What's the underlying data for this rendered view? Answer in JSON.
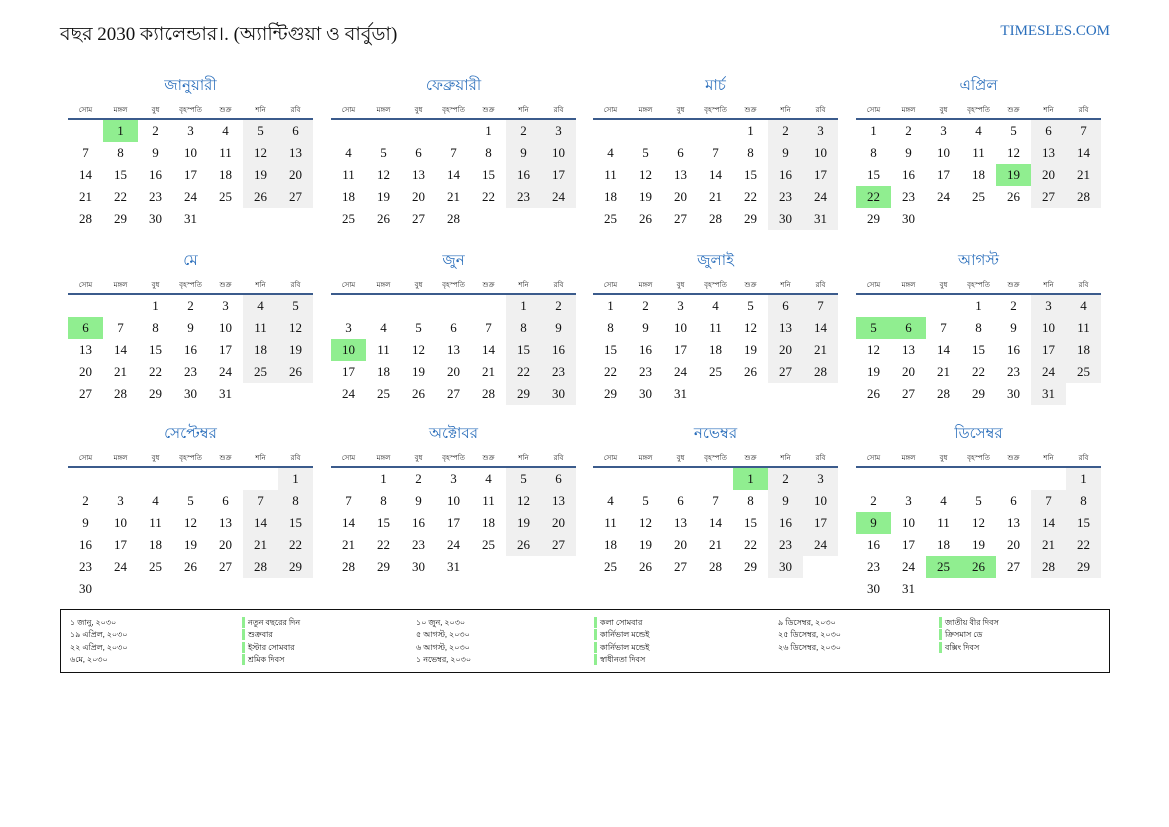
{
  "header": {
    "title": "বছর 2030 ক্যালেন্ডার।. (অ্যান্টিগুয়া ও বার্বুডা)",
    "site": "TIMESLES.COM"
  },
  "weekdays": [
    "সোম",
    "মঙ্গল",
    "বুধ",
    "বৃহস্পতি",
    "শুক্র",
    "শনি",
    "রবি"
  ],
  "months": [
    {
      "name": "জানুয়ারী",
      "highlight": [
        1
      ],
      "weeks": [
        [
          null,
          1,
          2,
          3,
          4,
          5,
          6
        ],
        [
          7,
          8,
          9,
          10,
          11,
          12,
          13
        ],
        [
          14,
          15,
          16,
          17,
          18,
          19,
          20
        ],
        [
          21,
          22,
          23,
          24,
          25,
          26,
          27
        ],
        [
          28,
          29,
          30,
          31
        ]
      ]
    },
    {
      "name": "ফেব্রুয়ারী",
      "highlight": [],
      "weeks": [
        [
          null,
          null,
          null,
          null,
          1,
          2,
          3
        ],
        [
          4,
          5,
          6,
          7,
          8,
          9,
          10
        ],
        [
          11,
          12,
          13,
          14,
          15,
          16,
          17
        ],
        [
          18,
          19,
          20,
          21,
          22,
          23,
          24
        ],
        [
          25,
          26,
          27,
          28
        ]
      ]
    },
    {
      "name": "মার্চ",
      "highlight": [],
      "weeks": [
        [
          null,
          null,
          null,
          null,
          1,
          2,
          3
        ],
        [
          4,
          5,
          6,
          7,
          8,
          9,
          10
        ],
        [
          11,
          12,
          13,
          14,
          15,
          16,
          17
        ],
        [
          18,
          19,
          20,
          21,
          22,
          23,
          24
        ],
        [
          25,
          26,
          27,
          28,
          29,
          30,
          31
        ]
      ]
    },
    {
      "name": "এপ্রিল",
      "highlight": [
        19,
        22
      ],
      "weeks": [
        [
          1,
          2,
          3,
          4,
          5,
          6,
          7
        ],
        [
          8,
          9,
          10,
          11,
          12,
          13,
          14
        ],
        [
          15,
          16,
          17,
          18,
          19,
          20,
          21
        ],
        [
          22,
          23,
          24,
          25,
          26,
          27,
          28
        ],
        [
          29,
          30
        ]
      ]
    },
    {
      "name": "মে",
      "highlight": [
        6
      ],
      "weeks": [
        [
          null,
          null,
          1,
          2,
          3,
          4,
          5
        ],
        [
          6,
          7,
          8,
          9,
          10,
          11,
          12
        ],
        [
          13,
          14,
          15,
          16,
          17,
          18,
          19
        ],
        [
          20,
          21,
          22,
          23,
          24,
          25,
          26
        ],
        [
          27,
          28,
          29,
          30,
          31
        ]
      ]
    },
    {
      "name": "জুন",
      "highlight": [
        10
      ],
      "weeks": [
        [
          null,
          null,
          null,
          null,
          null,
          1,
          2
        ],
        [
          3,
          4,
          5,
          6,
          7,
          8,
          9
        ],
        [
          10,
          11,
          12,
          13,
          14,
          15,
          16
        ],
        [
          17,
          18,
          19,
          20,
          21,
          22,
          23
        ],
        [
          24,
          25,
          26,
          27,
          28,
          29,
          30
        ]
      ]
    },
    {
      "name": "জুলাই",
      "highlight": [],
      "weeks": [
        [
          1,
          2,
          3,
          4,
          5,
          6,
          7
        ],
        [
          8,
          9,
          10,
          11,
          12,
          13,
          14
        ],
        [
          15,
          16,
          17,
          18,
          19,
          20,
          21
        ],
        [
          22,
          23,
          24,
          25,
          26,
          27,
          28
        ],
        [
          29,
          30,
          31
        ]
      ]
    },
    {
      "name": "আগস্ট",
      "highlight": [
        5,
        6
      ],
      "weeks": [
        [
          null,
          null,
          null,
          1,
          2,
          3,
          4
        ],
        [
          5,
          6,
          7,
          8,
          9,
          10,
          11
        ],
        [
          12,
          13,
          14,
          15,
          16,
          17,
          18
        ],
        [
          19,
          20,
          21,
          22,
          23,
          24,
          25
        ],
        [
          26,
          27,
          28,
          29,
          30,
          31
        ]
      ]
    },
    {
      "name": "সেপ্টেম্বর",
      "highlight": [],
      "weeks": [
        [
          null,
          null,
          null,
          null,
          null,
          null,
          1
        ],
        [
          2,
          3,
          4,
          5,
          6,
          7,
          8
        ],
        [
          9,
          10,
          11,
          12,
          13,
          14,
          15
        ],
        [
          16,
          17,
          18,
          19,
          20,
          21,
          22
        ],
        [
          23,
          24,
          25,
          26,
          27,
          28,
          29
        ],
        [
          30
        ]
      ]
    },
    {
      "name": "অক্টোবর",
      "highlight": [],
      "weeks": [
        [
          null,
          1,
          2,
          3,
          4,
          5,
          6
        ],
        [
          7,
          8,
          9,
          10,
          11,
          12,
          13
        ],
        [
          14,
          15,
          16,
          17,
          18,
          19,
          20
        ],
        [
          21,
          22,
          23,
          24,
          25,
          26,
          27
        ],
        [
          28,
          29,
          30,
          31
        ]
      ]
    },
    {
      "name": "নভেম্বর",
      "highlight": [
        1
      ],
      "weeks": [
        [
          null,
          null,
          null,
          null,
          1,
          2,
          3
        ],
        [
          4,
          5,
          6,
          7,
          8,
          9,
          10
        ],
        [
          11,
          12,
          13,
          14,
          15,
          16,
          17
        ],
        [
          18,
          19,
          20,
          21,
          22,
          23,
          24
        ],
        [
          25,
          26,
          27,
          28,
          29,
          30
        ]
      ]
    },
    {
      "name": "ডিসেম্বর",
      "highlight": [
        9,
        25,
        26
      ],
      "weeks": [
        [
          null,
          null,
          null,
          null,
          null,
          null,
          1
        ],
        [
          2,
          3,
          4,
          5,
          6,
          7,
          8
        ],
        [
          9,
          10,
          11,
          12,
          13,
          14,
          15
        ],
        [
          16,
          17,
          18,
          19,
          20,
          21,
          22
        ],
        [
          23,
          24,
          25,
          26,
          27,
          28,
          29
        ],
        [
          30,
          31
        ]
      ]
    }
  ],
  "holidays": [
    [
      [
        "১ জানু, ২০৩০",
        "নতুন বছরের দিন"
      ],
      [
        "১৯ এপ্রিল, ২০৩০",
        "শুক্রবার"
      ],
      [
        "২২ এপ্রিল, ২০৩০",
        "ইস্টার সোমবার"
      ],
      [
        "৬মে, ২০৩০",
        "শ্রমিক দিবস"
      ]
    ],
    [
      [
        "১০ জুন, ২০৩০",
        "কলা সোমবার"
      ],
      [
        "৫ আগস্ট, ২০৩০",
        "কার্নিভাল মন্ডেই"
      ],
      [
        "৬ আগস্ট, ২০৩০",
        "কার্নিভাল মন্ডেই"
      ],
      [
        "১ নভেম্বর, ২০৩০",
        "স্বাধীনতা দিবস"
      ]
    ],
    [
      [
        "৯ ডিসেম্বর, ২০৩০",
        "জাতীয় বীর দিবস"
      ],
      [
        "২৫ ডিসেম্বর, ২০৩০",
        "ক্রিসমাস ডে"
      ],
      [
        "২৬ ডিসেম্বর, ২০৩০",
        "বক্সিং দিবস"
      ]
    ]
  ]
}
